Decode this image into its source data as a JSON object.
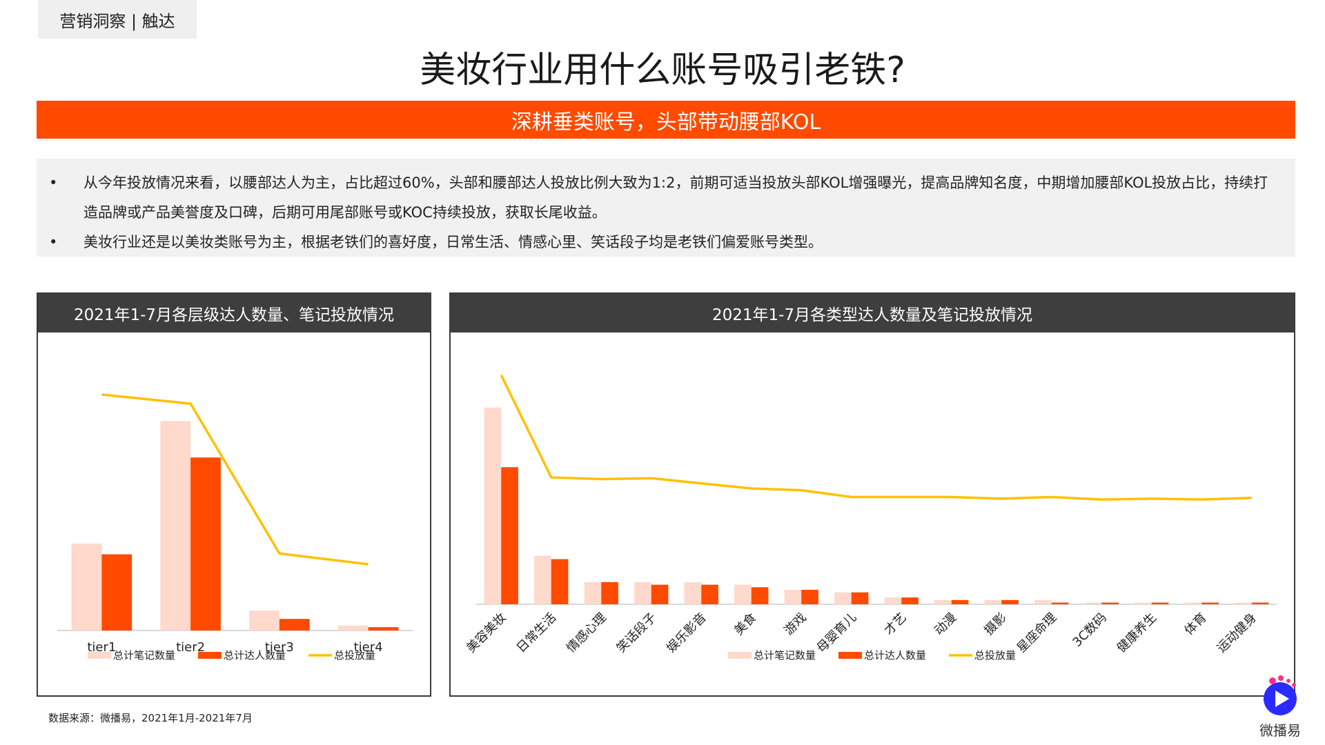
{
  "header": {
    "tag": "营销洞察 | 触达",
    "title": "美妆行业用什么账号吸引老铁?",
    "banner": "深耕垂类账号，头部带动腰部KOL"
  },
  "bullets": [
    "从今年投放情况来看，以腰部达人为主，占比超过60%，头部和腰部达人投放比例大致为1:2，前期可适当投放头部KOL增强曝光，提高品牌知名度，中期增加腰部KOL投放占比，持续打造品牌或产品美誉度及口碑，后期可用尾部账号或KOC持续投放，获取长尾收益。",
    "美妆行业还是以美妆类账号为主，根据老铁们的喜好度，日常生活、情感心里、笑话段子均是老铁们偏爱账号类型。"
  ],
  "bullet_marker": "•",
  "footer": {
    "source": "数据来源：微播易，2021年1月-2021年7月",
    "logo_text": "微播易"
  },
  "colors": {
    "notes": "#ffd9cc",
    "kols": "#ff4a00",
    "line": "#ffc000",
    "banner": "#ff4a00",
    "panel_header": "#3e3e3e"
  },
  "chart_data": [
    {
      "type": "bar",
      "title": "2021年1-7月各层级达人数量、笔记投放情况",
      "categories": [
        "tier1",
        "tier2",
        "tier3",
        "tier4"
      ],
      "series": [
        {
          "name": "总计笔记数量",
          "kind": "bar",
          "color": "#ffd9cc",
          "values": [
            105,
            253,
            24,
            6
          ]
        },
        {
          "name": "总计达人数量",
          "kind": "bar",
          "color": "#ff4a00",
          "values": [
            92,
            209,
            14,
            4
          ]
        },
        {
          "name": "总投放量",
          "kind": "line",
          "color": "#ffc000",
          "values": [
            285,
            274,
            93,
            80
          ]
        }
      ],
      "ylim": [
        0,
        330
      ],
      "legend": "bottom"
    },
    {
      "type": "bar",
      "title": "2021年1-7月各类型达人数量及笔记投放情况",
      "categories": [
        "美容美妆",
        "日常生活",
        "情感心理",
        "笑话段子",
        "娱乐影音",
        "美食",
        "游戏",
        "母婴育儿",
        "才艺",
        "动漫",
        "摄影",
        "星座命理",
        "3C数码",
        "健康养生",
        "体育",
        "运动健身"
      ],
      "series": [
        {
          "name": "总计笔记数量",
          "kind": "bar",
          "color": "#ffd9cc",
          "values": [
            231,
            57,
            26,
            26,
            26,
            23,
            17,
            14,
            8,
            5,
            5,
            5,
            2,
            2,
            2,
            2
          ]
        },
        {
          "name": "总计达人数量",
          "kind": "bar",
          "color": "#ff4a00",
          "values": [
            161,
            53,
            26,
            23,
            23,
            20,
            17,
            14,
            8,
            5,
            5,
            2,
            2,
            2,
            2,
            2
          ]
        },
        {
          "name": "总投放量",
          "kind": "line",
          "color": "#ffc000",
          "values": [
            269,
            149,
            147,
            148,
            142,
            136,
            134,
            126,
            126,
            126,
            124,
            126,
            123,
            124,
            123,
            125
          ]
        }
      ],
      "ylim": [
        0,
        290
      ],
      "legend": "bottom"
    }
  ]
}
